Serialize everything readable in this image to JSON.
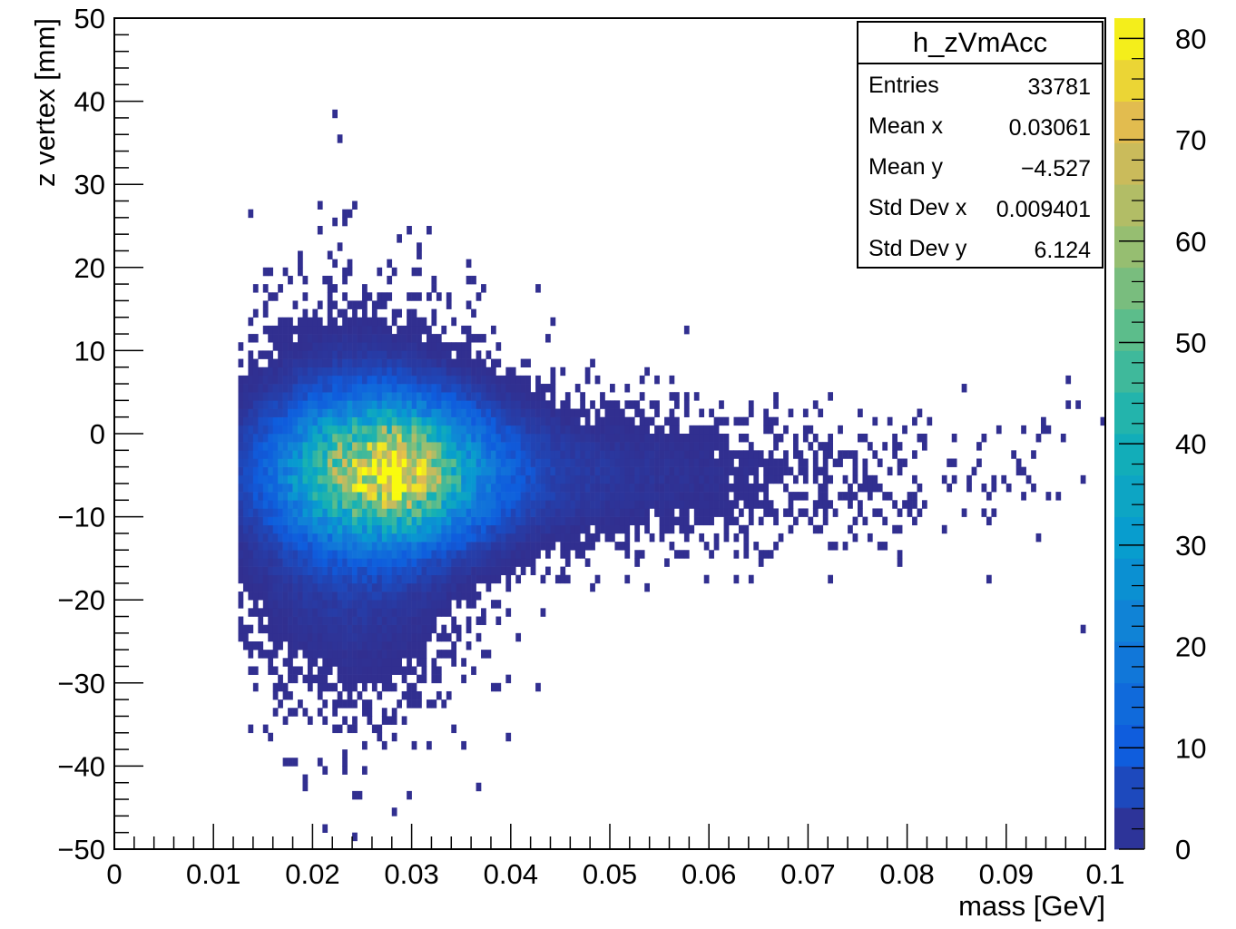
{
  "chart_data": {
    "type": "heatmap",
    "title": "",
    "xlabel": "mass [GeV]",
    "ylabel": "z vertex [mm]",
    "xlim": [
      0,
      0.1
    ],
    "ylim": [
      -50,
      50
    ],
    "xticks": [
      "0",
      "0.01",
      "0.02",
      "0.03",
      "0.04",
      "0.05",
      "0.06",
      "0.07",
      "0.08",
      "0.09",
      "0.1"
    ],
    "yticks": [
      "−50",
      "−40",
      "−30",
      "−20",
      "−10",
      "0",
      "10",
      "20",
      "30",
      "40",
      "50"
    ],
    "zlim": [
      0,
      82
    ],
    "zticks": [
      "0",
      "10",
      "20",
      "30",
      "40",
      "50",
      "60",
      "70",
      "80"
    ],
    "colorscale": "parula",
    "approx_distribution": {
      "peak": {
        "x": 0.027,
        "y": -4.5,
        "count": 70
      },
      "core_sigma": {
        "x": 0.006,
        "y": 5.0
      },
      "tail": {
        "x_end": 0.1,
        "y": -5.0,
        "y_spread": 4.5
      }
    },
    "stats": {
      "name": "h_zVmAcc",
      "rows": [
        {
          "key": "Entries",
          "value": "33781"
        },
        {
          "key": "Mean x",
          "value": "0.03061"
        },
        {
          "key": "Mean y",
          "value": "−4.527"
        },
        {
          "key": "Std Dev x",
          "value": "0.009401"
        },
        {
          "key": "Std Dev y",
          "value": "6.124"
        }
      ]
    }
  }
}
